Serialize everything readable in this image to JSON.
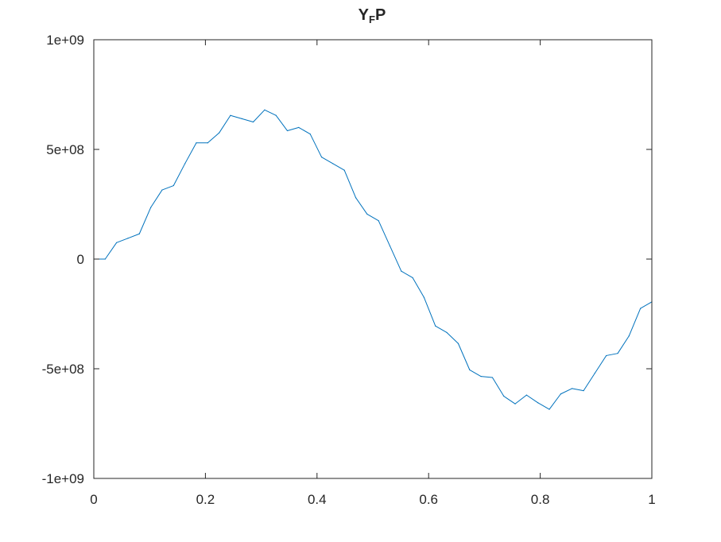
{
  "chart_data": {
    "type": "line",
    "title": "Y",
    "title_subscript": "F",
    "title_suffix": "P",
    "xlabel": "",
    "ylabel": "",
    "xlim": [
      0,
      1
    ],
    "ylim": [
      -1000000000,
      1000000000
    ],
    "xticks": [
      0,
      0.2,
      0.4,
      0.6,
      0.8,
      1
    ],
    "xtick_labels": [
      "0",
      "0.2",
      "0.4",
      "0.6",
      "0.8",
      "1"
    ],
    "yticks": [
      -1000000000,
      -500000000,
      0,
      500000000,
      1000000000
    ],
    "ytick_labels": [
      "-1e+09",
      "-5e+08",
      "0",
      "5e+08",
      "1e+09"
    ],
    "grid": false,
    "box": true,
    "series": [
      {
        "color": "#0072bd",
        "x": [
          0,
          0.0204,
          0.0408,
          0.0612,
          0.0816,
          0.102,
          0.1224,
          0.1429,
          0.1633,
          0.1837,
          0.2041,
          0.2245,
          0.2449,
          0.2653,
          0.2857,
          0.3061,
          0.3265,
          0.3469,
          0.3673,
          0.3878,
          0.4082,
          0.4286,
          0.449,
          0.4694,
          0.4898,
          0.5102,
          0.5306,
          0.551,
          0.5714,
          0.5918,
          0.6122,
          0.6327,
          0.6531,
          0.6735,
          0.6939,
          0.7143,
          0.7347,
          0.7551,
          0.7755,
          0.7959,
          0.8163,
          0.8367,
          0.8571,
          0.8776,
          0.898,
          0.9184,
          0.9388,
          0.9592,
          0.9796,
          1
        ],
        "y": [
          0,
          0,
          75000000,
          95000000,
          115000000,
          235000000,
          315000000,
          335000000,
          435000000,
          530000000,
          530000000,
          575000000,
          655000000,
          640000000,
          625000000,
          680000000,
          655000000,
          585000000,
          600000000,
          570000000,
          465000000,
          435000000,
          405000000,
          280000000,
          205000000,
          175000000,
          60000000,
          -55000000,
          -85000000,
          -175000000,
          -305000000,
          -335000000,
          -385000000,
          -505000000,
          -535000000,
          -540000000,
          -625000000,
          -660000000,
          -620000000,
          -655000000,
          -685000000,
          -615000000,
          -590000000,
          -600000000,
          -520000000,
          -440000000,
          -430000000,
          -350000000,
          -225000000,
          -195000000
        ]
      }
    ]
  }
}
